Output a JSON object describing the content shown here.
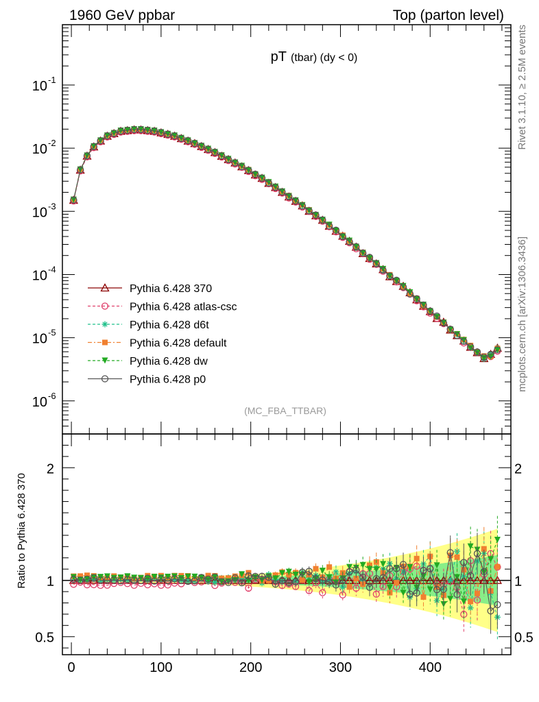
{
  "header": {
    "left": "1960 GeV ppbar",
    "right": "Top (parton level)"
  },
  "side_labels": {
    "rivet": "Rivet 3.1.10, ≥ 2.5M events",
    "mcplots": "mcplots.cern.ch [arXiv:1306.3436]"
  },
  "analysis_tag": "(MC_FBA_TTBAR)",
  "chart_data": [
    {
      "type": "line",
      "title_main": "pT",
      "title_sub": "(tbar) (dy < 0)",
      "xlabel": "",
      "ylabel": "",
      "yscale": "log",
      "xlim": [
        -10,
        490
      ],
      "ylim": [
        3e-07,
        0.9
      ],
      "y_tick_labels": [
        "10",
        "10",
        "10",
        "10",
        "10",
        "10"
      ],
      "y_tick_exponents": [
        "-6",
        "-5",
        "-4",
        "-3",
        "-2",
        "-1"
      ],
      "y_tick_values": [
        1e-06,
        1e-05,
        0.0001,
        0.001,
        0.01,
        0.1
      ],
      "legend_position": "center-left",
      "series": [
        {
          "name": "Pythia 6.428 370",
          "color": "#8b0000",
          "marker": "triangle-open",
          "dash": "solid",
          "scale": 1.0,
          "ratio_offset": 0.0
        },
        {
          "name": "Pythia 6.428 atlas-csc",
          "color": "#e0406b",
          "marker": "circle-open",
          "dash": "dashed",
          "scale": 1.0,
          "ratio_offset": -0.03
        },
        {
          "name": "Pythia 6.428 d6t",
          "color": "#1fc08a",
          "marker": "star",
          "dash": "dashed",
          "scale": 1.0,
          "ratio_offset": 0.01
        },
        {
          "name": "Pythia 6.428 default",
          "color": "#f08030",
          "marker": "square-filled",
          "dash": "dashdot",
          "scale": 1.0,
          "ratio_offset": 0.03
        },
        {
          "name": "Pythia 6.428 dw",
          "color": "#22aa22",
          "marker": "triangle-down-filled",
          "dash": "dashed",
          "scale": 1.0,
          "ratio_offset": 0.02
        },
        {
          "name": "Pythia 6.428 p0",
          "color": "#555555",
          "marker": "circle-open",
          "dash": "solid",
          "scale": 1.0,
          "ratio_offset": 0.01
        }
      ],
      "points": {
        "x": [
          2.5,
          10,
          17.5,
          25,
          32.5,
          40,
          47.5,
          55,
          62.5,
          70,
          77.5,
          85,
          92.5,
          100,
          107.5,
          115,
          122.5,
          130,
          137.5,
          145,
          152.5,
          160,
          167.5,
          175,
          182.5,
          190,
          197.5,
          205,
          212.5,
          220,
          227.5,
          235,
          242.5,
          250,
          257.5,
          265,
          272.5,
          280,
          287.5,
          295,
          302.5,
          310,
          317.5,
          325,
          332.5,
          340,
          347.5,
          355,
          362.5,
          370,
          377.5,
          385,
          392.5,
          400,
          407.5,
          415,
          422.5,
          430,
          437.5,
          445,
          452.5,
          460,
          467.5,
          475
        ],
        "y": [
          0.0015,
          0.0045,
          0.0075,
          0.0105,
          0.013,
          0.0155,
          0.017,
          0.0185,
          0.019,
          0.0195,
          0.0195,
          0.019,
          0.0185,
          0.0175,
          0.0165,
          0.0155,
          0.0142,
          0.013,
          0.0118,
          0.0106,
          0.0095,
          0.0085,
          0.0075,
          0.0066,
          0.0058,
          0.0051,
          0.0044,
          0.0038,
          0.0033,
          0.0028,
          0.0024,
          0.002,
          0.0017,
          0.00145,
          0.00122,
          0.00102,
          0.00085,
          0.00071,
          0.00059,
          0.00049,
          0.0004,
          0.00033,
          0.00027,
          0.00022,
          0.00018,
          0.000145,
          0.000118,
          9.5e-05,
          7.8e-05,
          6.3e-05,
          5e-05,
          4e-05,
          3.2e-05,
          2.6e-05,
          2.1e-05,
          1.7e-05,
          1.35e-05,
          1.1e-05,
          8.8e-06,
          7e-06,
          5.8e-06,
          4.8e-06,
          5.2e-06,
          6.5e-06
        ]
      }
    },
    {
      "type": "line",
      "title": "",
      "xlabel": "",
      "ylabel": "Ratio to Pythia 6.428 370",
      "xlim": [
        -10,
        490
      ],
      "ylim": [
        0.34,
        2.3
      ],
      "x_tick_values": [
        0,
        100,
        200,
        300,
        400
      ],
      "x_tick_labels": [
        "0",
        "100",
        "200",
        "300",
        "400"
      ],
      "y_tick_values": [
        0.5,
        1,
        2
      ],
      "y_tick_labels": [
        "0.5",
        "1",
        "2"
      ],
      "reference_line": 1,
      "band_inner_color": "#88ee88",
      "band_outer_color": "#ffff88"
    }
  ]
}
